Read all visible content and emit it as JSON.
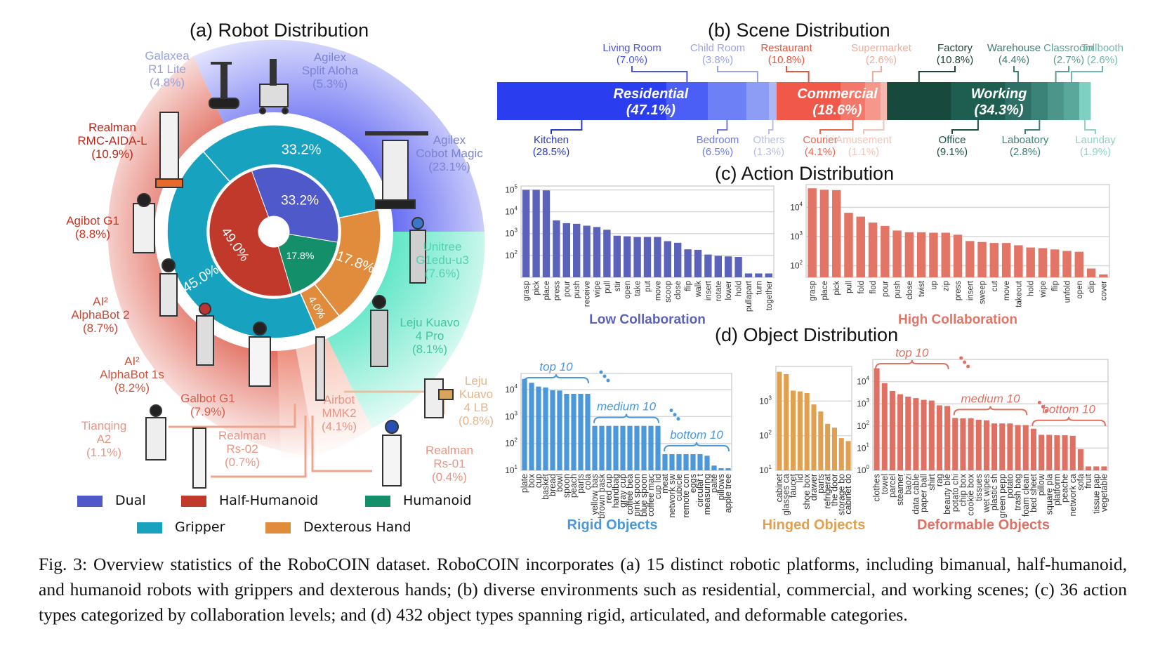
{
  "titles": {
    "robot": "(a) Robot Distribution",
    "scene": "(b) Scene Distribution",
    "action": "(c) Action Distribution",
    "object": "(d) Object Distribution"
  },
  "colors": {
    "dual": "#5059c9",
    "half_humanoid": "#c0392b",
    "humanoid": "#13906a",
    "gripper": "#17a2c0",
    "dexterous": "#e08c3c",
    "low_collab": "#5b62b9",
    "high_collab": "#e37566",
    "rigid": "#4a97db",
    "hinged": "#e0a050",
    "deformable": "#e07062"
  },
  "robot": {
    "inner_ring": [
      {
        "name": "Dual",
        "value": 33.2,
        "label": "33.2%"
      },
      {
        "name": "Humanoid",
        "value": 17.8,
        "label": "17.8%"
      },
      {
        "name": "Half-Humanoid",
        "value": 49.0,
        "label": "49.0%"
      }
    ],
    "outer_ring": [
      {
        "name": "Gripper",
        "value": 33.2,
        "label": "33.2%"
      },
      {
        "name": "Dexterous Hand",
        "value": 17.8,
        "label": "17.8%"
      },
      {
        "name": "Dexterous Hand",
        "value": 4.0,
        "label": "4.0%"
      },
      {
        "name": "Gripper",
        "value": 45.0,
        "label": "45.0%"
      }
    ],
    "platforms": [
      {
        "name": "Galaxea",
        "name2": "R1 Lite",
        "pct": "(4.8%)",
        "color": "#9aa0dc"
      },
      {
        "name": "Agilex",
        "name2": "Split Aloha",
        "pct": "(5.3%)",
        "color": "#7b82d8"
      },
      {
        "name": "Agilex",
        "name2": "Cobot Magic",
        "pct": "(23.1%)",
        "color": "#7b82d0"
      },
      {
        "name": "Realman",
        "name2": "RMC-AIDA-L",
        "pct": "(10.9%)",
        "color": "#b82a1c"
      },
      {
        "name": "Agibot G1",
        "name2": "",
        "pct": "(8.8%)",
        "color": "#c8321f"
      },
      {
        "name": "AI²",
        "name2": "AlphaBot 2",
        "pct": "(8.7%)",
        "color": "#c54836"
      },
      {
        "name": "AI²",
        "name2": "AlphaBot 1s",
        "pct": "(8.2%)",
        "color": "#c9553f"
      },
      {
        "name": "Galbot G1",
        "name2": "",
        "pct": "(7.9%)",
        "color": "#d45f4d"
      },
      {
        "name": "Tianqing",
        "name2": "A2",
        "pct": "(1.1%)",
        "color": "#e89585"
      },
      {
        "name": "Realman",
        "name2": "Rs-02",
        "pct": "(0.7%)",
        "color": "#e89585"
      },
      {
        "name": "Airbot",
        "name2": "MMK2",
        "pct": "(4.1%)",
        "color": "#e89585"
      },
      {
        "name": "Realman",
        "name2": "Rs-01",
        "pct": "(0.4%)",
        "color": "#e89585"
      },
      {
        "name": "Leju",
        "name2": "Kuavo",
        "name3": "4 LB",
        "pct": "(0.8%)",
        "color": "#e3b58f"
      },
      {
        "name": "Leju Kuavo",
        "name2": "4 Pro",
        "pct": "(8.1%)",
        "color": "#43c4a0"
      },
      {
        "name": "Unitree",
        "name2": "G1edu-u3",
        "pct": "(7.6%)",
        "color": "#55d0b0"
      }
    ],
    "legend": [
      "Dual",
      "Half-Humanoid",
      "Humanoid",
      "Gripper",
      "Dexterous Hand"
    ]
  },
  "scene": {
    "groups": [
      {
        "name": "Residential",
        "pct": "(47.1%)",
        "value": 47.1
      },
      {
        "name": "Commercial",
        "pct": "(18.6%)",
        "value": 18.6
      },
      {
        "name": "Working",
        "pct": "(34.3%)",
        "value": 34.3
      }
    ],
    "segments": [
      {
        "name": "Kitchen",
        "pct": "(28.5%)",
        "value": 28.5,
        "fill": "#2a3ef0",
        "text": "#2a3bb8",
        "pos": "below"
      },
      {
        "name": "Living Room",
        "pct": "(7.0%)",
        "value": 7.0,
        "fill": "#4b5ef5",
        "text": "#4b56d8",
        "pos": "above"
      },
      {
        "name": "Bedroom",
        "pct": "(6.5%)",
        "value": 6.5,
        "fill": "#6e80f5",
        "text": "#6f7ddc",
        "pos": "below"
      },
      {
        "name": "Child Room",
        "pct": "(3.8%)",
        "value": 3.8,
        "fill": "#8d9cf5",
        "text": "#9aa3e6",
        "pos": "above"
      },
      {
        "name": "Others",
        "pct": "(1.3%)",
        "value": 1.3,
        "fill": "#aeb7f5",
        "text": "#b7bde8",
        "pos": "below"
      },
      {
        "name": "Restaurant",
        "pct": "(10.8%)",
        "value": 10.8,
        "fill": "#f0584a",
        "text": "#e3553f",
        "pos": "above"
      },
      {
        "name": "Courier",
        "pct": "(4.1%)",
        "value": 4.1,
        "fill": "#f4786a",
        "text": "#e8674f",
        "pos": "below"
      },
      {
        "name": "Supermarket",
        "pct": "(2.6%)",
        "value": 2.6,
        "fill": "#f5978a",
        "text": "#efab9d",
        "pos": "above"
      },
      {
        "name": "Amusement",
        "pct": "(1.1%)",
        "value": 1.1,
        "fill": "#f6b7ad",
        "text": "#f2c4b8",
        "pos": "below"
      },
      {
        "name": "Factory",
        "pct": "(10.8%)",
        "value": 10.8,
        "fill": "#174a3c",
        "text": "#1d3f36",
        "pos": "above"
      },
      {
        "name": "Office",
        "pct": "(9.1%)",
        "value": 9.1,
        "fill": "#1d5e50",
        "text": "#1e4f45",
        "pos": "below"
      },
      {
        "name": "Warehouse",
        "pct": "(4.4%)",
        "value": 4.4,
        "fill": "#2e7066",
        "text": "#3e7a70",
        "pos": "above"
      },
      {
        "name": "Laboatory",
        "pct": "(2.8%)",
        "value": 2.8,
        "fill": "#3b8278",
        "text": "#3e7f73",
        "pos": "below"
      },
      {
        "name": "Classroom",
        "pct": "(2.7%)",
        "value": 2.7,
        "fill": "#4b958a",
        "text": "#5e9b90",
        "pos": "above"
      },
      {
        "name": "Tollbooth",
        "pct": "(2.6%)",
        "value": 2.6,
        "fill": "#5aa89c",
        "text": "#6fb8ac",
        "pos": "above"
      },
      {
        "name": "Launday",
        "pct": "(1.9%)",
        "value": 1.9,
        "fill": "#7dd0c2",
        "text": "#8fd2c6",
        "pos": "below"
      }
    ]
  },
  "chart_data": [
    {
      "type": "bar",
      "title": "(c) Action Distribution",
      "xlabel": "Low Collaboration",
      "yscale": "log",
      "ylim": [
        10,
        150000
      ],
      "yticks": [
        "10^2",
        "10^3",
        "10^4",
        "10^5"
      ],
      "categories": [
        "grasp",
        "pick",
        "place",
        "press",
        "pour",
        "push",
        "receive",
        "wipe",
        "pull",
        "stir",
        "open",
        "take",
        "put",
        "move",
        "scoop",
        "close",
        "flip",
        "walk",
        "insert",
        "rotate",
        "lower",
        "hold",
        "pullapart",
        "turn",
        "together"
      ],
      "values": [
        100000,
        100000,
        95000,
        4000,
        3000,
        2800,
        2300,
        2000,
        1500,
        800,
        750,
        700,
        700,
        700,
        450,
        380,
        190,
        180,
        110,
        95,
        90,
        85,
        15,
        15,
        15
      ]
    },
    {
      "type": "bar",
      "xlabel": "High Collaboration",
      "yscale": "log",
      "ylim": [
        40,
        60000
      ],
      "yticks": [
        "10^2",
        "10^3",
        "10^4"
      ],
      "categories": [
        "grasp",
        "place",
        "pick",
        "pull",
        "fold",
        "flod",
        "pour",
        "push",
        "close",
        "twist",
        "up",
        "zip",
        "press",
        "insert",
        "sweep",
        "cut",
        "move",
        "takeout",
        "hold",
        "wipe",
        "flip",
        "unfold",
        "open",
        "clip",
        "cover"
      ],
      "values": [
        45000,
        40000,
        39000,
        6500,
        4800,
        3000,
        2300,
        1600,
        1400,
        1400,
        1350,
        1350,
        1150,
        700,
        650,
        600,
        600,
        500,
        420,
        400,
        360,
        320,
        300,
        80,
        50
      ]
    },
    {
      "type": "bar",
      "xlabel": "Rigid Objects",
      "yscale": "log",
      "ylim": [
        10,
        40000
      ],
      "yticks": [
        "10^1",
        "10^2",
        "10^3",
        "10^4"
      ],
      "annotations": [
        "top 10",
        "medium 10",
        "bottom 10"
      ],
      "categories": [
        "plate",
        "box",
        "cup",
        "basket",
        "bread",
        "bowl",
        "spoon",
        "peach",
        "parts",
        "cola",
        "yellow bas",
        "brown bask",
        "red cup",
        "handbag",
        "gray cup",
        "coffee bea",
        "pink spoon",
        "blue spoon",
        "coffee mac",
        "cup lid",
        "meat",
        "network sw",
        "cubicle",
        "remote con",
        "eggs",
        "circular t",
        "measuring",
        "palte",
        "pillows",
        "apple tree"
      ],
      "values": [
        25000,
        18000,
        13000,
        12000,
        9500,
        9300,
        7000,
        7000,
        7000,
        7000,
        450,
        450,
        450,
        450,
        450,
        450,
        450,
        450,
        450,
        450,
        40,
        40,
        40,
        40,
        40,
        40,
        35,
        15,
        12,
        12
      ]
    },
    {
      "type": "bar",
      "xlabel": "Hinged Objects",
      "yscale": "log",
      "ylim": [
        10,
        10000
      ],
      "yticks": [
        "10^1",
        "10^2",
        "10^3"
      ],
      "categories": [
        "cabinet",
        "glasses ca",
        "faucet",
        "lid",
        "shoe box",
        "drawer",
        "parts",
        "refrigerat",
        "the door",
        "storage bo",
        "cabinet do"
      ],
      "values": [
        7000,
        6000,
        2000,
        1900,
        1700,
        800,
        500,
        220,
        170,
        85,
        70
      ]
    },
    {
      "type": "bar",
      "xlabel": "Deformable Objects",
      "yscale": "log",
      "ylim": [
        1,
        100000
      ],
      "yticks": [
        "10^0",
        "10^1",
        "10^2",
        "10^3",
        "10^4"
      ],
      "annotations": [
        "top 10",
        "medium 10",
        "bottom 10"
      ],
      "categories": [
        "clothes",
        "towel",
        "parcel",
        "steamer",
        "baozi",
        "data cable",
        "paper ball",
        "shirt",
        "rag",
        "beauty ble",
        "potato chi",
        "chip box",
        "cookie box",
        "tissues",
        "wet wipes",
        "plastic sh",
        "green pepp",
        "potato",
        "trash bag",
        "foam clean",
        "bed sheet",
        "pillow",
        "square pla",
        "platform",
        "peache",
        "network ca",
        "sofa",
        "fruit",
        "tissue pap",
        "vegetable"
      ],
      "values": [
        40000,
        8500,
        3800,
        2700,
        2100,
        1800,
        1500,
        1400,
        850,
        800,
        230,
        220,
        220,
        190,
        180,
        130,
        130,
        130,
        110,
        110,
        75,
        40,
        40,
        38,
        38,
        36,
        9,
        1.5,
        1.5,
        1.5
      ]
    }
  ],
  "caption": "Fig. 3: Overview statistics of the RoboCOIN dataset. RoboCOIN incorporates (a) 15 distinct robotic platforms, including bimanual, half-humanoid, and humanoid robots with grippers and dexterous hands; (b) diverse environments such as residential, commercial, and working scenes; (c) 36 action types categorized by collaboration levels; and (d) 432 object types spanning rigid, articulated, and deformable categories."
}
